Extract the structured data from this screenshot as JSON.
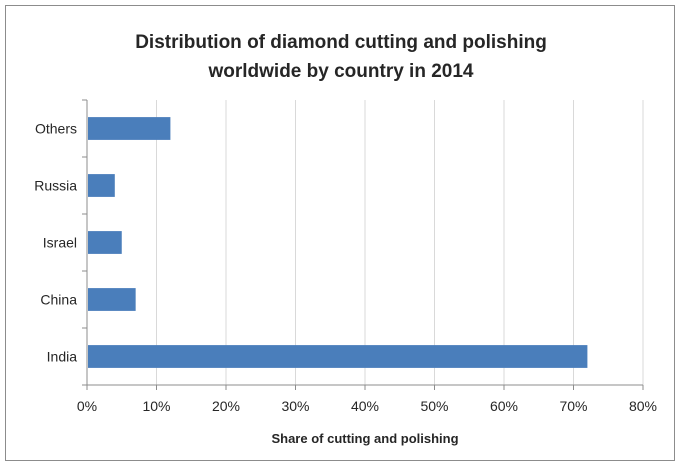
{
  "chart_data": {
    "type": "bar",
    "orientation": "horizontal",
    "title_lines": [
      "Distribution of diamond cutting and polishing",
      "worldwide by country in 2014"
    ],
    "categories": [
      "India",
      "China",
      "Israel",
      "Russia",
      "Others"
    ],
    "values": [
      72,
      7,
      5,
      4,
      12
    ],
    "xlabel": "Share of cutting and polishing",
    "ylabel": "",
    "xlim": [
      0,
      80
    ],
    "x_ticks": [
      0,
      10,
      20,
      30,
      40,
      50,
      60,
      70,
      80
    ],
    "x_tick_format": "percent",
    "grid": "vertical",
    "legend": "none",
    "bar_color": "#4a7ebb",
    "grid_color": "#d9d9d9"
  }
}
